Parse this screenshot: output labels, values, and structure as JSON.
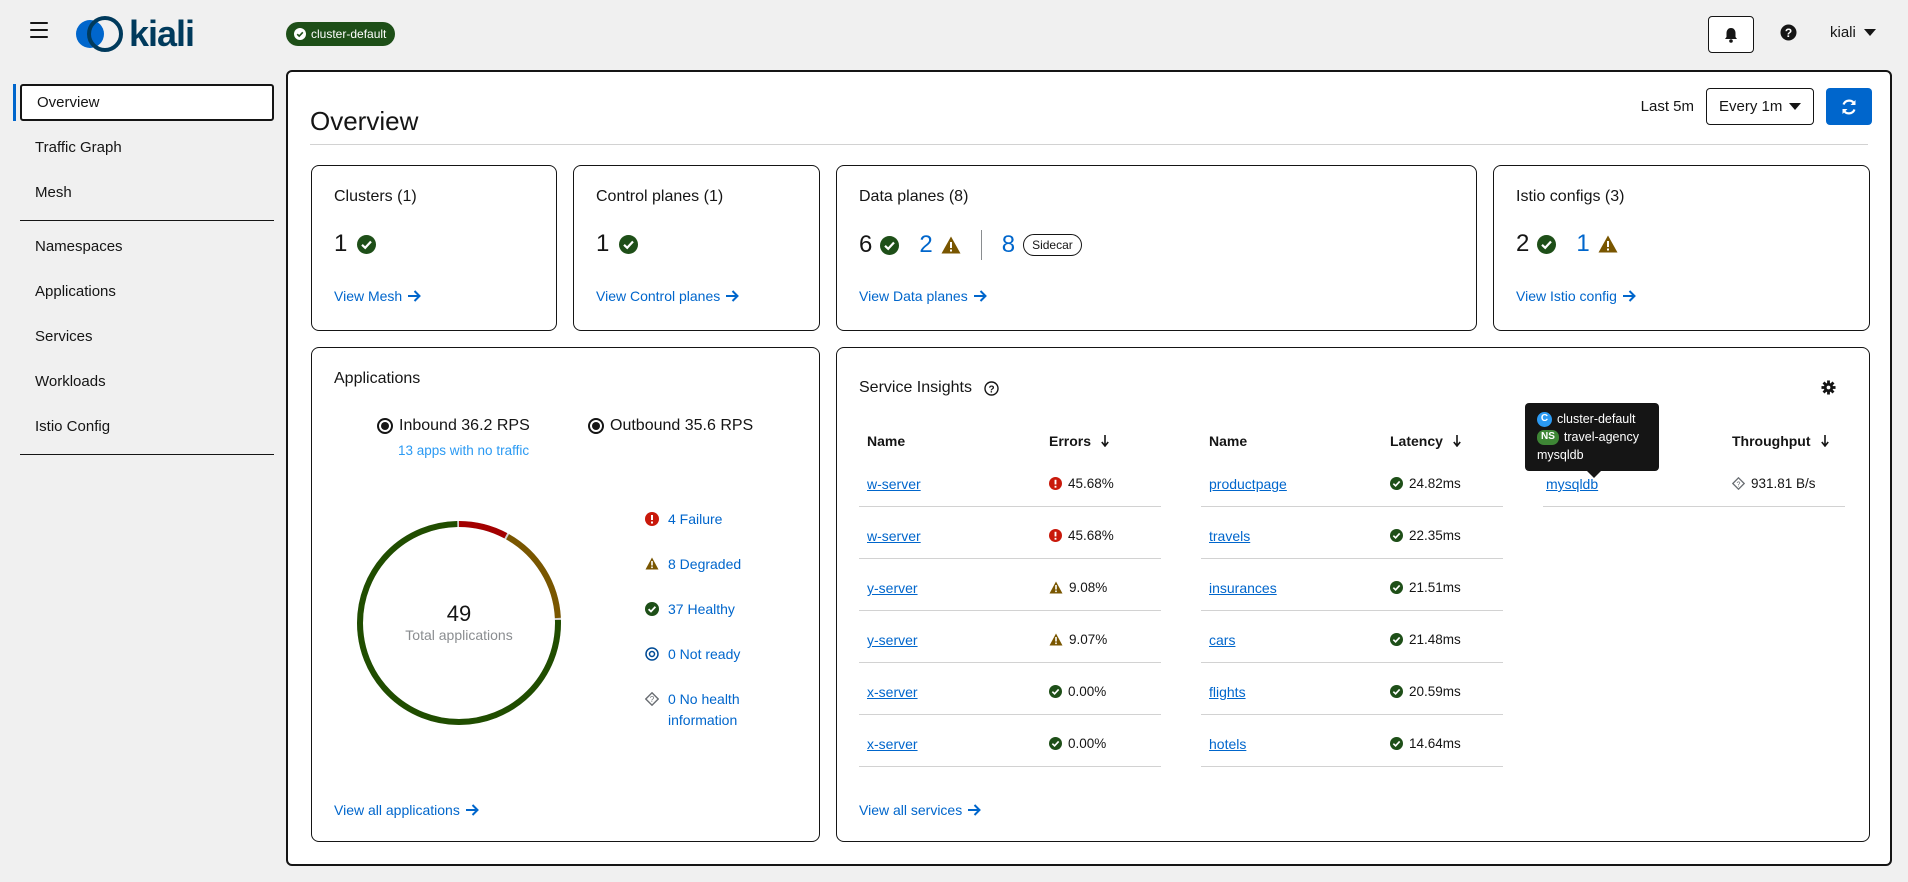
{
  "header": {
    "logo_text": "kiali",
    "cluster_badge": "cluster-default",
    "user": "kiali"
  },
  "sidebar": {
    "items": [
      {
        "label": "Overview",
        "active": true
      },
      {
        "label": "Traffic Graph"
      },
      {
        "label": "Mesh"
      },
      {
        "label": "Namespaces"
      },
      {
        "label": "Applications"
      },
      {
        "label": "Services"
      },
      {
        "label": "Workloads"
      },
      {
        "label": "Istio Config"
      }
    ]
  },
  "page": {
    "title": "Overview",
    "last_label": "Last 5m",
    "interval": "Every 1m"
  },
  "cards": {
    "clusters": {
      "title": "Clusters (1)",
      "healthy": "1",
      "link": "View Mesh"
    },
    "control_planes": {
      "title": "Control planes (1)",
      "healthy": "1",
      "link": "View Control planes"
    },
    "data_planes": {
      "title": "Data planes (8)",
      "healthy": "6",
      "degraded": "2",
      "sidecar_count": "8",
      "sidecar_label": "Sidecar",
      "link": "View Data planes"
    },
    "istio_configs": {
      "title": "Istio configs (3)",
      "healthy": "2",
      "warning": "1",
      "link": "View Istio config"
    }
  },
  "applications": {
    "title": "Applications",
    "inbound": "Inbound 36.2 RPS",
    "outbound": "Outbound 35.6 RPS",
    "no_traffic": "13 apps with no traffic",
    "total": "49",
    "total_label": "Total applications",
    "donut": {
      "failure": 4,
      "degraded": 8,
      "healthy": 37,
      "total": 49
    },
    "legend": {
      "failure": "4 Failure",
      "degraded": "8 Degraded",
      "healthy": "37 Healthy",
      "not_ready": "0 Not ready",
      "no_health_1": "0 No health",
      "no_health_2": "information"
    },
    "link": "View all applications"
  },
  "insights": {
    "title": "Service Insights",
    "errors_table": {
      "headers": {
        "name": "Name",
        "metric": "Errors"
      },
      "rows": [
        {
          "name": "w-server",
          "value": "45.68%",
          "status": "error"
        },
        {
          "name": "w-server",
          "value": "45.68%",
          "status": "error"
        },
        {
          "name": "y-server",
          "value": "9.08%",
          "status": "warning"
        },
        {
          "name": "y-server",
          "value": "9.07%",
          "status": "warning"
        },
        {
          "name": "x-server",
          "value": "0.00%",
          "status": "ok"
        },
        {
          "name": "x-server",
          "value": "0.00%",
          "status": "ok"
        }
      ]
    },
    "latency_table": {
      "headers": {
        "name": "Name",
        "metric": "Latency"
      },
      "rows": [
        {
          "name": "productpage",
          "value": "24.82ms"
        },
        {
          "name": "travels",
          "value": "22.35ms"
        },
        {
          "name": "insurances",
          "value": "21.51ms"
        },
        {
          "name": "cars",
          "value": "21.48ms"
        },
        {
          "name": "flights",
          "value": "20.59ms"
        },
        {
          "name": "hotels",
          "value": "14.64ms"
        }
      ]
    },
    "throughput_table": {
      "headers": {
        "metric": "Throughput"
      },
      "rows": [
        {
          "name": "mysqldb",
          "value": "931.81 B/s"
        }
      ]
    },
    "tooltip": {
      "cluster_badge": "C",
      "cluster": "cluster-default",
      "ns_badge": "NS",
      "namespace": "travel-agency",
      "service": "mysqldb"
    },
    "link": "View all services"
  },
  "colors": {
    "accent": "#0066cc",
    "healthy": "#3e8635",
    "degraded": "#8f5a14",
    "failure": "#c9190b"
  }
}
